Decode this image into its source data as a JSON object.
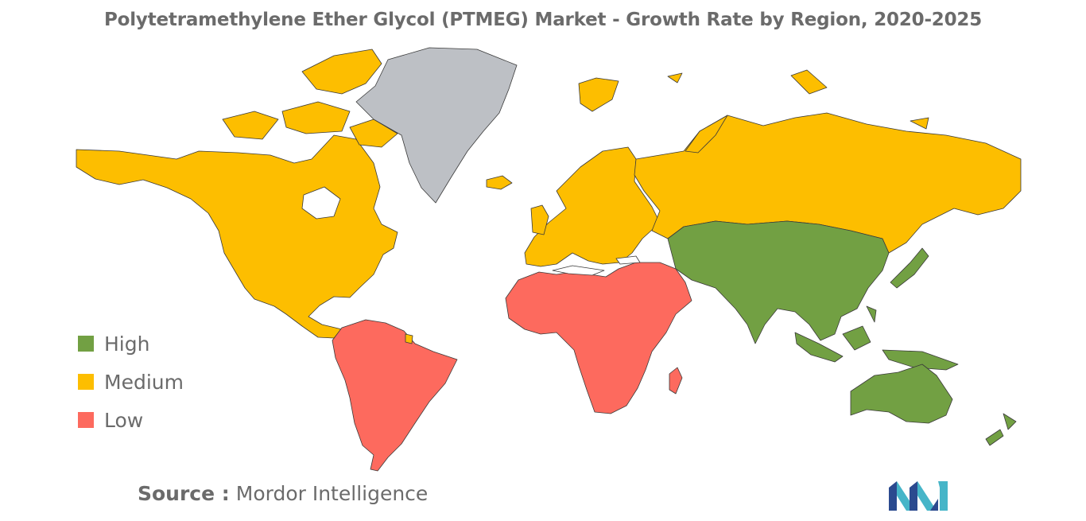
{
  "title": "Polytetramethylene Ether Glycol (PTMEG) Market - Growth Rate by Region, 2020-2025",
  "legend": [
    {
      "label": "High",
      "color": "#72a043"
    },
    {
      "label": "Medium",
      "color": "#fdbe00"
    },
    {
      "label": "Low",
      "color": "#fd6a5e"
    }
  ],
  "no_data_color": "#bdc0c5",
  "source": {
    "prefix": "Source :",
    "text": "Mordor Intelligence"
  },
  "logo_icon": "mordor-intelligence-logo-icon"
}
